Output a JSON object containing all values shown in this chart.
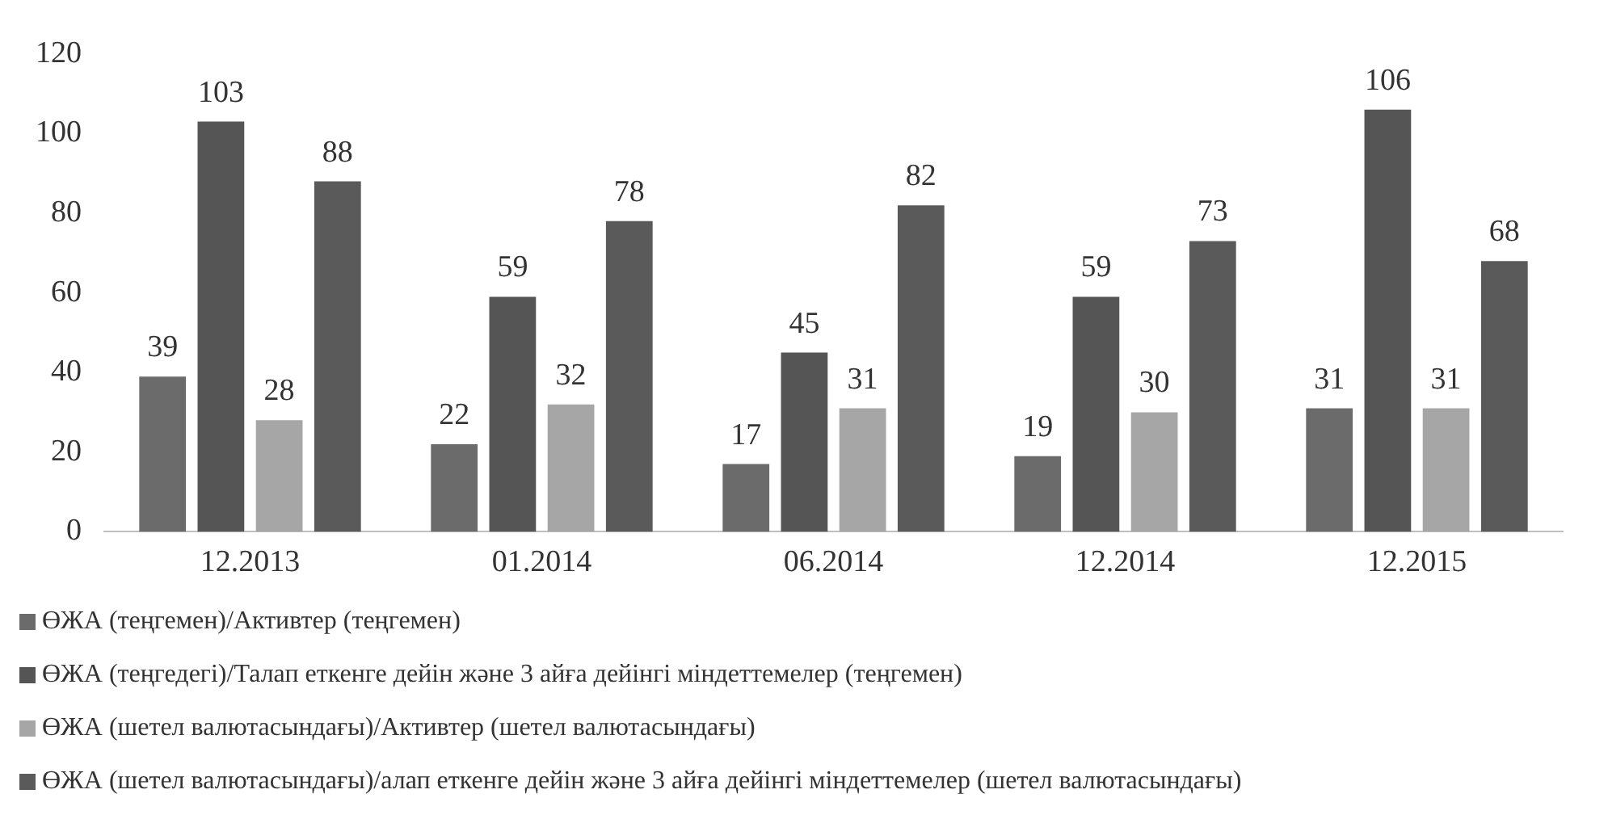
{
  "chart_data": {
    "type": "bar",
    "categories": [
      "12.2013",
      "01.2014",
      "06.2014",
      "12.2014",
      "12.2015"
    ],
    "series": [
      {
        "name": "ӨЖА (теңгемен)/Активтер (теңгемен)",
        "color": "#6b6b6b",
        "values": [
          39,
          22,
          17,
          19,
          31
        ]
      },
      {
        "name": "ӨЖА (теңгедегі)/Талап еткенге дейін және 3 айға дейінгі міндеттемелер (теңгемен)",
        "color": "#555555",
        "values": [
          103,
          59,
          45,
          59,
          106
        ]
      },
      {
        "name": "ӨЖА (шетел валютасындағы)/Активтер (шетел валютасындағы)",
        "color": "#a6a6a6",
        "values": [
          28,
          32,
          31,
          30,
          31
        ]
      },
      {
        "name": "ӨЖА (шетел валютасындағы)/алап еткенге дейін және 3 айға дейінгі міндеттемелер (шетел валютасындағы)",
        "color": "#5a5a5a",
        "values": [
          88,
          78,
          82,
          73,
          68
        ]
      }
    ],
    "ylim": [
      0,
      120
    ],
    "yticks": [
      0,
      20,
      40,
      60,
      80,
      100,
      120
    ],
    "grid": false,
    "legend": "bottom",
    "data_labels": true
  }
}
